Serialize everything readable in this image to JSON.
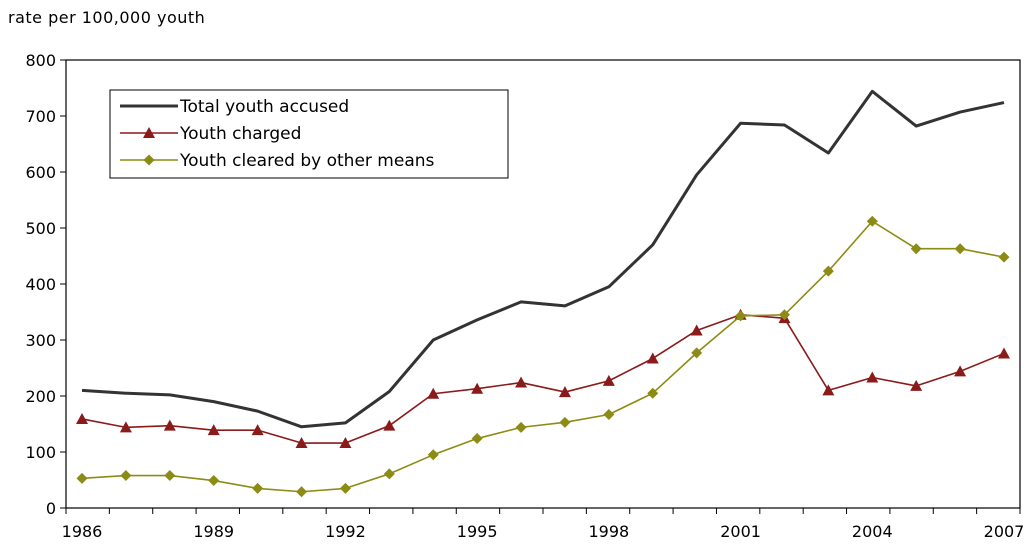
{
  "chart_data": {
    "type": "line",
    "ylabel": "rate per 100,000 youth",
    "xlabel": "",
    "ylim": [
      0,
      800
    ],
    "yticks": [
      0,
      100,
      200,
      300,
      400,
      500,
      600,
      700,
      800
    ],
    "xrange": [
      1986,
      2007
    ],
    "xtick_labels": [
      1986,
      1989,
      1992,
      1995,
      1998,
      2001,
      2004,
      2007
    ],
    "legend_position": "top-left",
    "grid": false,
    "x": [
      1986,
      1987,
      1988,
      1989,
      1990,
      1991,
      1992,
      1993,
      1994,
      1995,
      1996,
      1997,
      1998,
      1999,
      2000,
      2001,
      2002,
      2003,
      2004,
      2005,
      2006,
      2007
    ],
    "series": [
      {
        "name": "Total youth accused",
        "color": "#333333",
        "marker": "none",
        "values": [
          210,
          205,
          202,
          190,
          173,
          145,
          152,
          208,
          300,
          336,
          368,
          361,
          395,
          470,
          595,
          687,
          684,
          634,
          744,
          682,
          707,
          724
        ]
      },
      {
        "name": "Youth charged",
        "color": "#8b1a1a",
        "marker": "triangle",
        "values": [
          159,
          144,
          147,
          139,
          139,
          116,
          116,
          147,
          204,
          213,
          224,
          207,
          227,
          267,
          317,
          345,
          339,
          210,
          233,
          218,
          244,
          276
        ]
      },
      {
        "name": "Youth cleared by other means",
        "color": "#8c8c14",
        "marker": "diamond",
        "values": [
          53,
          58,
          58,
          49,
          35,
          29,
          35,
          61,
          95,
          124,
          144,
          153,
          167,
          205,
          277,
          343,
          345,
          423,
          512,
          463,
          463,
          448
        ]
      }
    ]
  }
}
